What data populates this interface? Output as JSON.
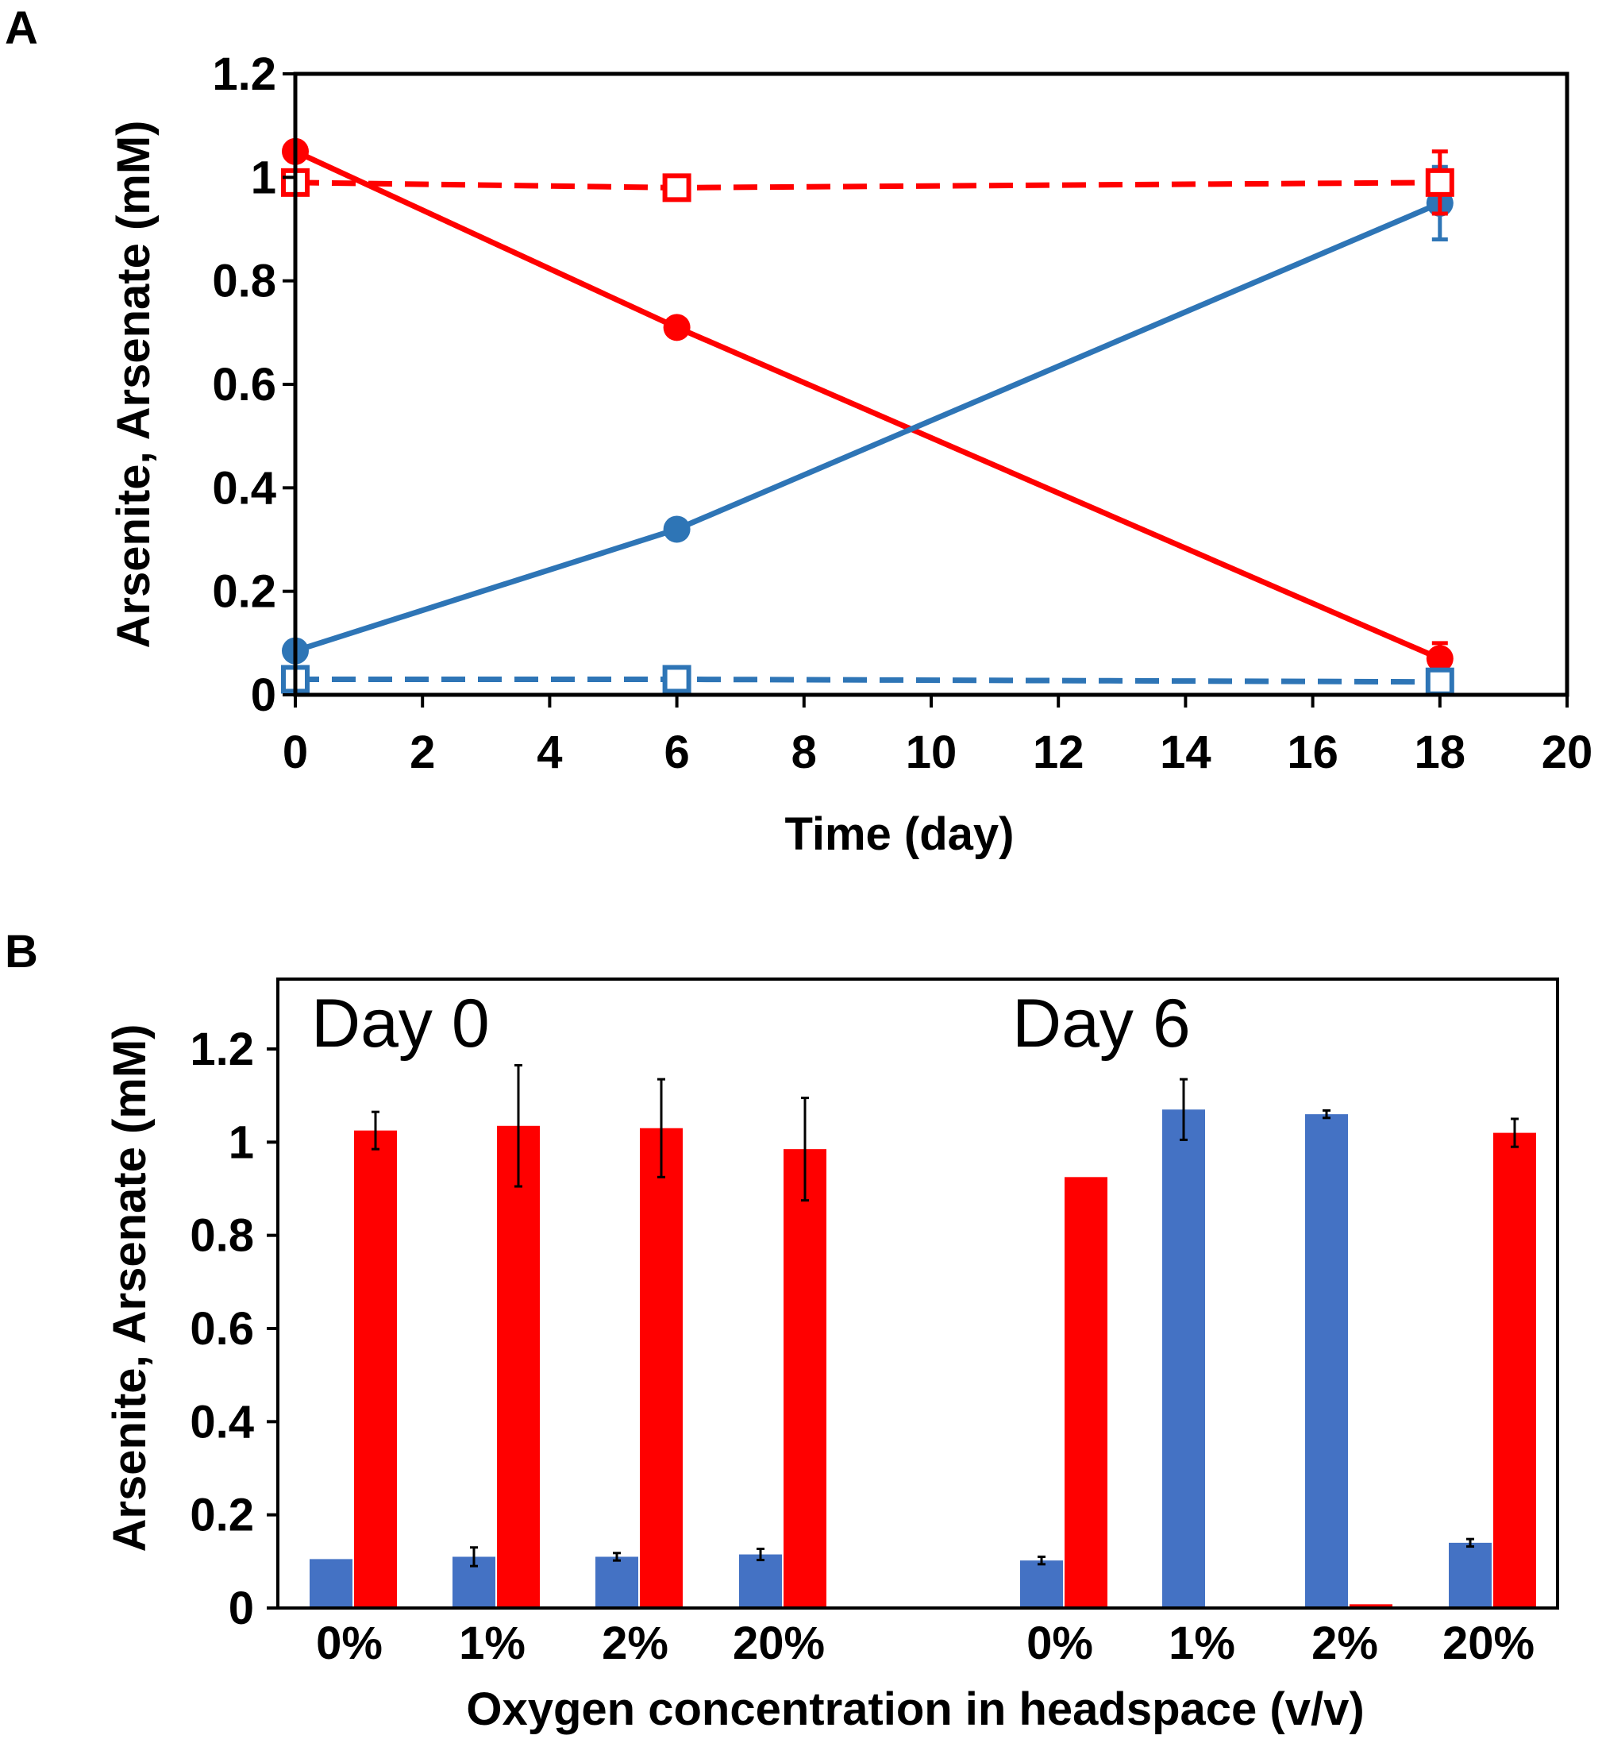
{
  "colors": {
    "arsenite": "#2e75b6",
    "arsenate": "#ff0000",
    "bar_arsenite": "#4472c4",
    "bar_arsenate": "#ff0000"
  },
  "chart_data": [
    {
      "panel": "A",
      "type": "line",
      "xlabel": "Time (day)",
      "ylabel": "Arsenite, Arsenate (mM)",
      "xlim": [
        0,
        20
      ],
      "ylim": [
        0,
        1.2
      ],
      "x_ticks": [
        "0",
        "2",
        "4",
        "6",
        "8",
        "10",
        "12",
        "14",
        "16",
        "18",
        "20"
      ],
      "y_ticks": [
        "0",
        "0.2",
        "0.4",
        "0.6",
        "0.8",
        "1",
        "1.2"
      ],
      "series": [
        {
          "name": "arsenate (filled)",
          "color": "arsenate",
          "marker": "circle",
          "dash": false,
          "x": [
            0,
            6,
            18
          ],
          "y": [
            1.05,
            0.71,
            0.07
          ],
          "err": [
            0,
            0,
            0.03
          ]
        },
        {
          "name": "arsenite (filled)",
          "color": "arsenite",
          "marker": "circle",
          "dash": false,
          "x": [
            0,
            6,
            18
          ],
          "y": [
            0.085,
            0.32,
            0.95
          ],
          "err": [
            0,
            0,
            0.07
          ]
        },
        {
          "name": "arsenate (open)",
          "color": "arsenate",
          "marker": "square",
          "dash": true,
          "x": [
            0,
            6,
            18
          ],
          "y": [
            0.99,
            0.98,
            0.99
          ],
          "err": [
            0,
            0,
            0.06
          ]
        },
        {
          "name": "arsenite (open)",
          "color": "arsenite",
          "marker": "square",
          "dash": true,
          "x": [
            0,
            6,
            18
          ],
          "y": [
            0.03,
            0.03,
            0.025
          ],
          "err": [
            0,
            0,
            0.01
          ]
        }
      ]
    },
    {
      "panel": "B",
      "type": "bar",
      "xlabel": "Oxygen concentration in headspace (v/v)",
      "ylabel": "Arsenite, Arsenate (mM)",
      "ylim": [
        0,
        1.35
      ],
      "y_ticks": [
        "0",
        "0.2",
        "0.4",
        "0.6",
        "0.8",
        "1",
        "1.2"
      ],
      "groups": [
        "Day 0",
        "Day 6"
      ],
      "categories": [
        "0%",
        "1%",
        "2%",
        "20%",
        "0%",
        "1%",
        "2%",
        "20%"
      ],
      "series": [
        {
          "name": "Arsenite",
          "color": "bar_arsenite",
          "values": [
            0.105,
            0.11,
            0.11,
            0.115,
            0.102,
            1.07,
            1.06,
            0.14
          ],
          "err": [
            0,
            0.02,
            0.008,
            0.012,
            0.008,
            0.065,
            0.008,
            0.008
          ]
        },
        {
          "name": "Arsenate",
          "color": "bar_arsenate",
          "values": [
            1.025,
            1.035,
            1.03,
            0.985,
            0.925,
            0,
            0.008,
            1.02
          ],
          "err": [
            0.04,
            0.13,
            0.105,
            0.11,
            0,
            0,
            0,
            0.03
          ]
        }
      ]
    }
  ]
}
